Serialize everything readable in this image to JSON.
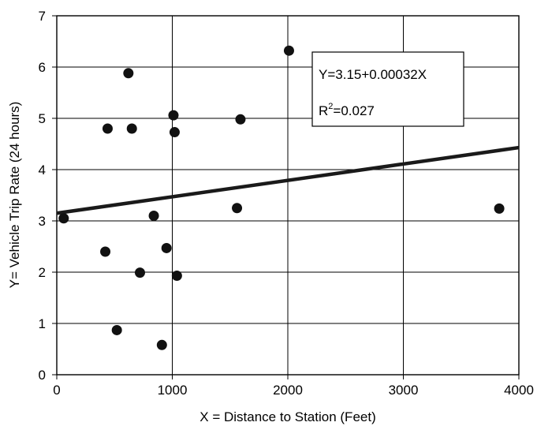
{
  "chart_data": {
    "type": "scatter",
    "xlabel": "X = Distance to Station (Feet)",
    "ylabel": "Y= Vehicle Trip Rate (24 hours)",
    "xlim": [
      0,
      4000
    ],
    "ylim": [
      0,
      7
    ],
    "xticks": [
      0,
      1000,
      2000,
      3000,
      4000
    ],
    "yticks": [
      0,
      1,
      2,
      3,
      4,
      5,
      6,
      7
    ],
    "grid": true,
    "points": [
      {
        "x": 60,
        "y": 3.05
      },
      {
        "x": 420,
        "y": 2.4
      },
      {
        "x": 440,
        "y": 4.8
      },
      {
        "x": 520,
        "y": 0.87
      },
      {
        "x": 620,
        "y": 5.88
      },
      {
        "x": 650,
        "y": 4.8
      },
      {
        "x": 720,
        "y": 1.99
      },
      {
        "x": 840,
        "y": 3.1
      },
      {
        "x": 910,
        "y": 0.58
      },
      {
        "x": 950,
        "y": 2.47
      },
      {
        "x": 1010,
        "y": 5.06
      },
      {
        "x": 1020,
        "y": 4.73
      },
      {
        "x": 1040,
        "y": 1.93
      },
      {
        "x": 1560,
        "y": 3.25
      },
      {
        "x": 1590,
        "y": 4.98
      },
      {
        "x": 2010,
        "y": 6.32
      },
      {
        "x": 3830,
        "y": 3.24
      }
    ],
    "trendline": {
      "intercept": 3.15,
      "slope": 0.00032,
      "color": "#1a1a1a"
    },
    "annotations": {
      "equation": "Y=3.15+0.00032X",
      "r2_prefix": "R",
      "r2_sup": "2",
      "r2_value": "=0.027"
    },
    "point_color": "#111111"
  }
}
